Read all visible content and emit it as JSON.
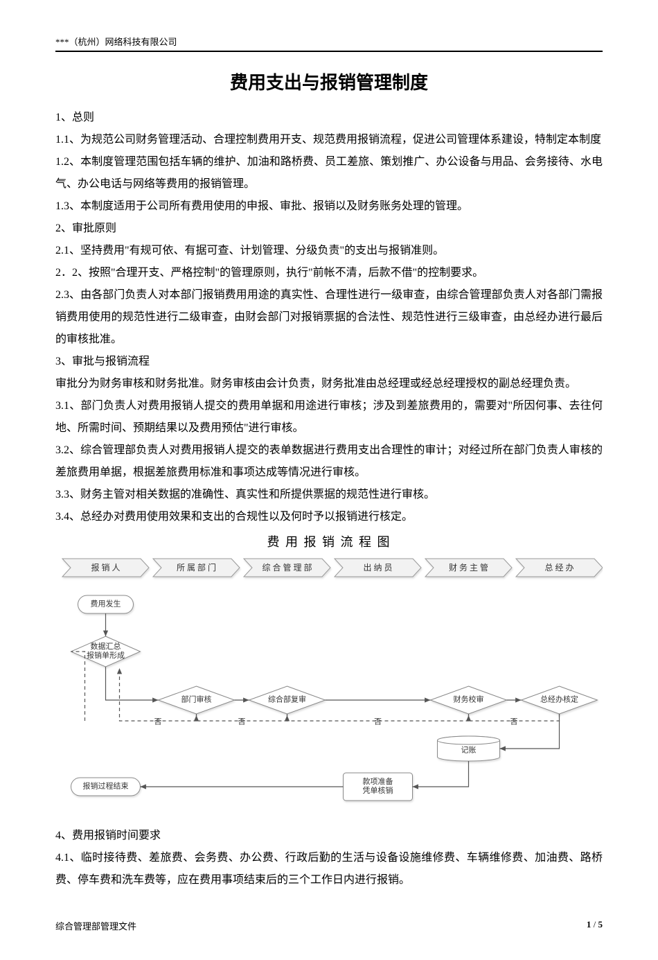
{
  "header": {
    "company": "***（杭州）网络科技有限公司"
  },
  "title": "费用支出与报销管理制度",
  "paragraphs": {
    "s1h": "1、总则",
    "p11": "1.1、为规范公司财务管理活动、合理控制费用开支、规范费用报销流程，促进公司管理体系建设，特制定本制度",
    "p12": "1.2、本制度管理范围包括车辆的维护、加油和路桥费、员工差旅、策划推广、办公设备与用品、会务接待、水电气、办公电话与网络等费用的报销管理。",
    "p13": "1.3、本制度适用于公司所有费用使用的申报、审批、报销以及财务账务处理的管理。",
    "s2h": "2、审批原则",
    "p21": "2.1、坚持费用\"有规可依、有据可查、计划管理、分级负责\"的支出与报销准则。",
    "p22": "2．2、按照\"合理开支、严格控制\"的管理原则，执行\"前帐不清，后款不借\"的控制要求。",
    "p23": "2.3、由各部门负责人对本部门报销费用用途的真实性、合理性进行一级审查，由综合管理部负责人对各部门需报销费用使用的规范性进行二级审查，由财会部门对报销票据的合法性、规范性进行三级审查，由总经办进行最后的审核批准。",
    "s3h": "3、审批与报销流程",
    "p3intro": "审批分为财务审核和财务批准。财务审核由会计负责，财务批准由总经理或经总经理授权的副总经理负责。",
    "p31": "3.1、部门负责人对费用报销人提交的费用单据和用途进行审核；涉及到差旅费用的，需要对\"所因何事、去往何地、所需时间、预期结果以及费用预估\"进行审核。",
    "p32": "3.2、综合管理部负责人对费用报销人提交的表单数据进行费用支出合理性的审计；对经过所在部门负责人审核的差旅费用单据，根据差旅费用标准和事项达成等情况进行审核。",
    "p33": "3.3、财务主管对相关数据的准确性、真实性和所提供票据的规范性进行审核。",
    "p34": "3.4、总经办对费用使用效果和支出的合规性以及何时予以报销进行核定。",
    "s4h": "4、费用报销时间要求",
    "p41": "4.1、临时接待费、差旅费、会务费、办公费、行政后勤的生活与设备设施维修费、车辆维修费、加油费、路桥费、停车费和洗车费等，应在费用事项结束后的三个工作日内进行报销。"
  },
  "flowchart": {
    "title": "费 用 报 销 流 程 图",
    "lanes": [
      "报 销 人",
      "所 属 部 门",
      "综 合 管 理 部",
      "出 纳 员",
      "财 务 主 管",
      "总 经 办"
    ],
    "nodes": {
      "start": "费用发生",
      "collect": "数据汇总\\n报销单形成",
      "deptReview": "部门审核",
      "compReview": "综合部复审",
      "finCheck": "财务校审",
      "gmApprove": "总经办核定",
      "record": "记账",
      "prepare": "款项准备\\n凭单核销",
      "end": "报销过程结束"
    },
    "labels": {
      "no": "否"
    },
    "style": {
      "laneFill": "#f2f2f2",
      "laneStroke": "#999999",
      "nodeFill": "#ffffff",
      "nodeStroke": "#888888",
      "nodeShadow": "#dddddd",
      "line": "#555555",
      "text": "#333333",
      "fontSize": 11,
      "laneFontSize": 12
    }
  },
  "footer": {
    "left": "综合管理部管理文件",
    "page_current": "1",
    "page_sep": " / ",
    "page_total": "5"
  }
}
